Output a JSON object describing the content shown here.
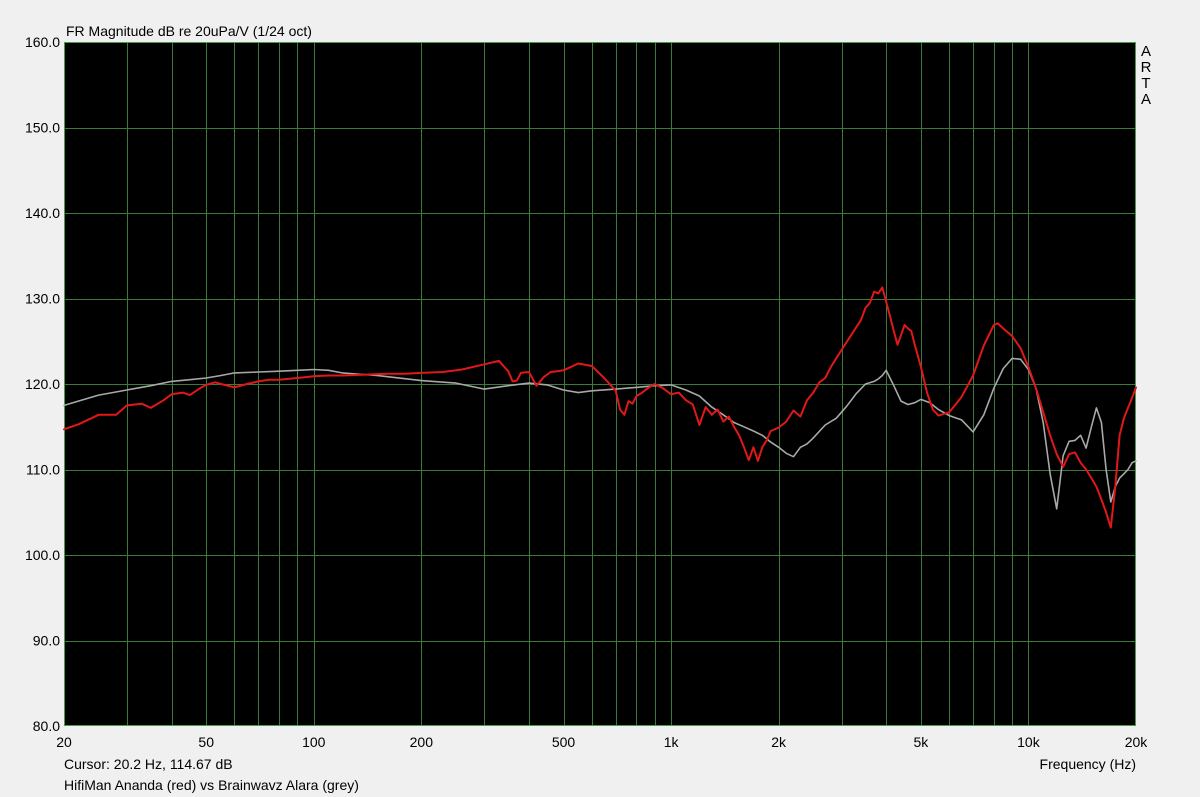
{
  "chart_data": {
    "type": "line",
    "title": "FR Magnitude dB re 20uPa/V (1/24 oct)",
    "brand": "ARTA",
    "xlabel": "Frequency (Hz)",
    "cursor_text": "Cursor: 20.2 Hz, 114.67 dB",
    "footer_text": "HifiMan Ananda (red) vs Brainwavz Alara (grey)",
    "x_scale": "log",
    "xlim": [
      20,
      20000
    ],
    "ylim": [
      80,
      160
    ],
    "x_ticks": [
      20,
      50,
      100,
      200,
      500,
      1000,
      2000,
      5000,
      10000,
      20000
    ],
    "x_tick_labels": [
      "20",
      "50",
      "100",
      "200",
      "500",
      "1k",
      "2k",
      "5k",
      "10k",
      "20k"
    ],
    "y_ticks": [
      80,
      90,
      100,
      110,
      120,
      130,
      140,
      150,
      160
    ],
    "y_tick_labels": [
      "80.0",
      "90.0",
      "100.0",
      "110.0",
      "120.0",
      "130.0",
      "140.0",
      "150.0",
      "160.0"
    ],
    "grid": true,
    "colors": {
      "background": "#000000",
      "grid": "#3a7a3a",
      "frame": "#4a9a4a",
      "window": "#f0f0f0"
    },
    "series": [
      {
        "color": "#e01818",
        "x": [
          20,
          22,
          25,
          28,
          30,
          33,
          35,
          38,
          40,
          43,
          45,
          48,
          50,
          53,
          55,
          60,
          65,
          70,
          75,
          80,
          90,
          100,
          110,
          120,
          140,
          160,
          180,
          200,
          230,
          260,
          300,
          330,
          350,
          360,
          370,
          380,
          400,
          420,
          440,
          460,
          480,
          500,
          550,
          600,
          650,
          700,
          720,
          740,
          760,
          780,
          800,
          830,
          860,
          900,
          950,
          1000,
          1050,
          1100,
          1150,
          1200,
          1250,
          1300,
          1350,
          1400,
          1450,
          1500,
          1550,
          1600,
          1650,
          1700,
          1750,
          1800,
          1850,
          1900,
          2000,
          2100,
          2200,
          2300,
          2400,
          2500,
          2600,
          2700,
          2800,
          3000,
          3200,
          3400,
          3500,
          3600,
          3700,
          3800,
          3900,
          4000,
          4100,
          4200,
          4300,
          4400,
          4500,
          4600,
          4700,
          4800,
          5000,
          5200,
          5400,
          5600,
          5800,
          6000,
          6200,
          6500,
          7000,
          7500,
          8000,
          8200,
          8500,
          9000,
          9500,
          10000,
          10500,
          11000,
          11500,
          12000,
          12500,
          13000,
          13500,
          14000,
          14500,
          15000,
          15500,
          16000,
          16500,
          17000,
          17500,
          18000,
          18500,
          19000,
          19500,
          20000
        ],
        "y": [
          114.7,
          115.3,
          116.4,
          116.4,
          117.5,
          117.7,
          117.2,
          118.1,
          118.8,
          119.0,
          118.7,
          119.5,
          119.9,
          120.2,
          120.0,
          119.6,
          120.0,
          120.3,
          120.5,
          120.5,
          120.7,
          120.9,
          121.0,
          121.0,
          121.1,
          121.2,
          121.2,
          121.3,
          121.4,
          121.7,
          122.3,
          122.7,
          121.5,
          120.3,
          120.4,
          121.3,
          121.4,
          119.8,
          120.8,
          121.4,
          121.5,
          121.6,
          122.4,
          122.1,
          120.7,
          119.2,
          117.0,
          116.4,
          118.0,
          117.7,
          118.6,
          119.0,
          119.5,
          120.0,
          119.5,
          118.8,
          119.0,
          118.1,
          117.6,
          115.2,
          117.3,
          116.4,
          117.0,
          115.6,
          116.2,
          115.0,
          114.0,
          112.6,
          111.1,
          112.6,
          111.0,
          112.6,
          113.4,
          114.5,
          114.9,
          115.6,
          116.9,
          116.2,
          118.1,
          119.0,
          120.2,
          120.7,
          122.0,
          124.0,
          125.8,
          127.5,
          128.9,
          129.5,
          130.8,
          130.6,
          131.3,
          129.6,
          127.9,
          126.2,
          124.6,
          125.7,
          126.9,
          126.5,
          126.2,
          124.7,
          122.0,
          119.0,
          117.0,
          116.3,
          116.5,
          116.7,
          117.4,
          118.5,
          121.0,
          124.5,
          126.9,
          127.1,
          126.5,
          125.6,
          124.2,
          122.0,
          119.5,
          116.7,
          114.0,
          111.8,
          110.3,
          111.8,
          112.0,
          110.8,
          110.0,
          109.0,
          108.0,
          106.5,
          105.0,
          103.2,
          108.0,
          114.0,
          116.0,
          117.2,
          118.4,
          119.6
        ]
      },
      {
        "color": "#a8a8a8",
        "x": [
          20,
          25,
          30,
          35,
          40,
          45,
          50,
          55,
          60,
          70,
          80,
          90,
          100,
          110,
          120,
          150,
          200,
          250,
          300,
          350,
          400,
          450,
          500,
          550,
          600,
          700,
          800,
          900,
          1000,
          1100,
          1200,
          1300,
          1400,
          1500,
          1600,
          1700,
          1800,
          1900,
          2000,
          2100,
          2200,
          2300,
          2400,
          2500,
          2700,
          2900,
          3100,
          3300,
          3500,
          3700,
          3800,
          3900,
          4000,
          4200,
          4400,
          4600,
          4800,
          5000,
          5300,
          5600,
          6000,
          6500,
          7000,
          7500,
          8000,
          8500,
          9000,
          9500,
          10000,
          10500,
          11000,
          11500,
          12000,
          12500,
          13000,
          13500,
          14000,
          14500,
          15000,
          15500,
          16000,
          16500,
          17000,
          17500,
          18000,
          18500,
          19000,
          19500,
          20000
        ],
        "y": [
          117.5,
          118.7,
          119.3,
          119.8,
          120.3,
          120.5,
          120.7,
          121.0,
          121.3,
          121.4,
          121.5,
          121.6,
          121.7,
          121.6,
          121.3,
          121.0,
          120.4,
          120.1,
          119.4,
          119.8,
          120.1,
          119.9,
          119.3,
          119.0,
          119.2,
          119.4,
          119.6,
          119.8,
          119.9,
          119.3,
          118.6,
          117.3,
          116.4,
          115.5,
          115.0,
          114.5,
          114.0,
          113.2,
          112.6,
          111.9,
          111.5,
          112.6,
          113.0,
          113.7,
          115.2,
          116.0,
          117.4,
          118.9,
          120.0,
          120.3,
          120.6,
          121.0,
          121.6,
          119.8,
          118.0,
          117.6,
          117.8,
          118.2,
          117.8,
          117.0,
          116.3,
          115.8,
          114.4,
          116.4,
          119.5,
          121.8,
          123.0,
          122.9,
          121.7,
          119.5,
          115.5,
          109.5,
          105.4,
          111.6,
          113.3,
          113.4,
          114.0,
          112.5,
          115.0,
          117.2,
          115.5,
          110.0,
          106.2,
          108.0,
          109.0,
          109.5,
          110.0,
          110.8,
          111.0
        ]
      }
    ]
  }
}
